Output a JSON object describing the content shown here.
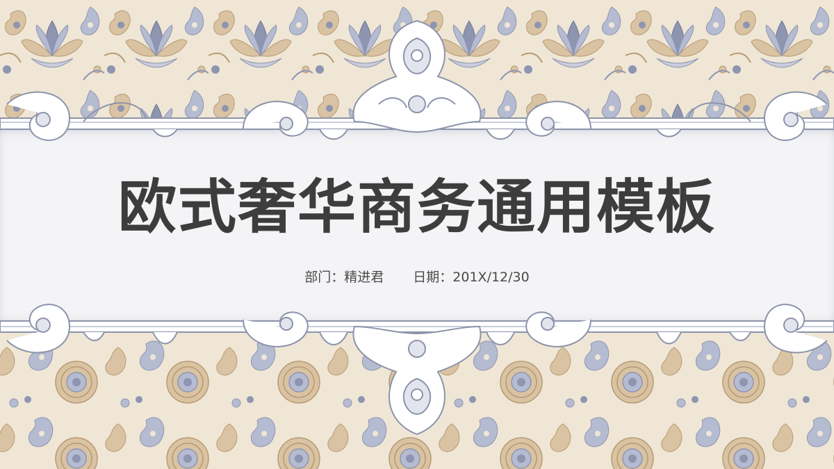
{
  "slide": {
    "title": "欧式奢华商务通用模板",
    "department": "部门：精进君",
    "date": "日期：201X/12/30"
  },
  "colors": {
    "pattern_background": "#efe6d6",
    "pattern_tan": "#d9c3a3",
    "pattern_tan_dark": "#b89a72",
    "pattern_blue": "#8e95b0",
    "pattern_blue_light": "#b5bbd0",
    "panel_background": "#f4f4f6",
    "lace_white": "#ffffff",
    "lace_outline": "#8c93aa",
    "title_color": "#3d3d3d",
    "subtitle_color": "#4a4a4a"
  },
  "decor": {
    "top_pattern": "paisley-floral-pattern",
    "bottom_pattern": "paisley-floral-pattern",
    "top_frame": "lace-scroll-ornament",
    "bottom_frame": "lace-scroll-ornament"
  }
}
